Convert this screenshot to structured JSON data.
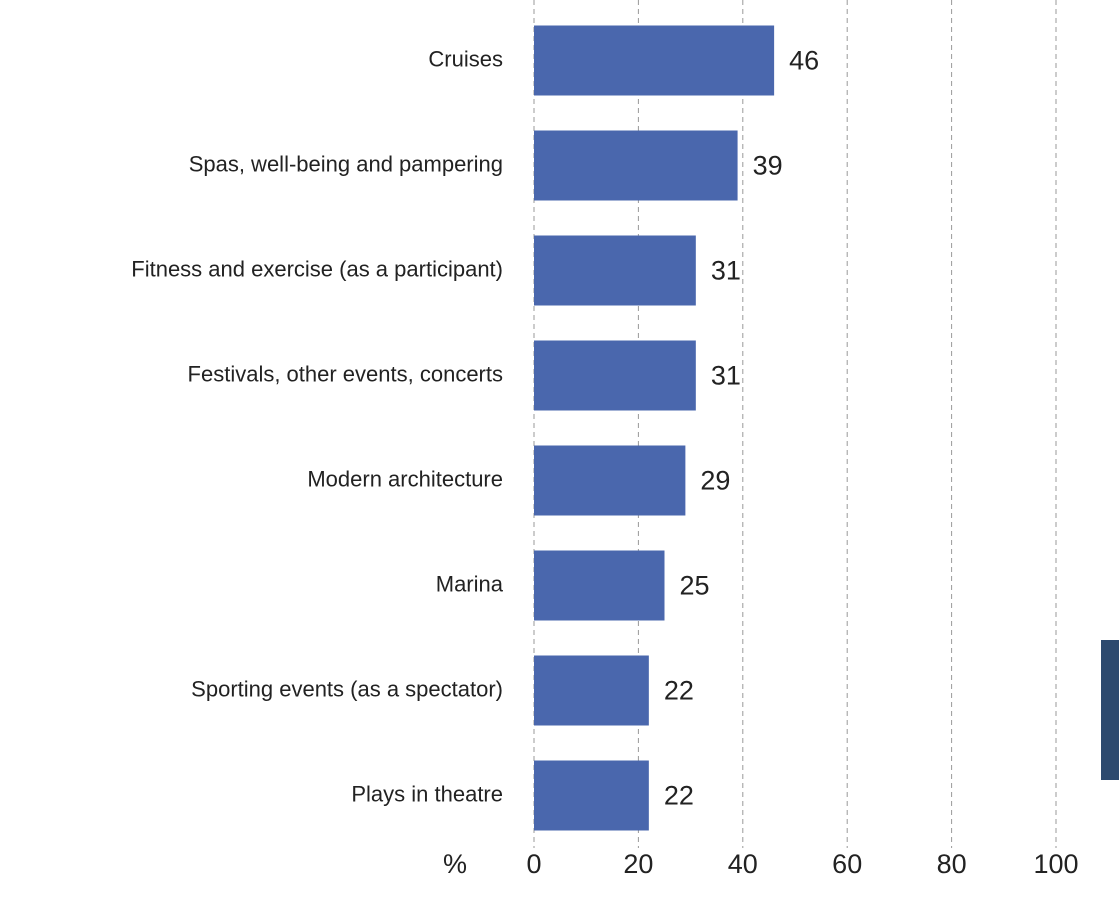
{
  "chart_data": {
    "type": "hbar",
    "categories": [
      "Cruises",
      "Spas, well-being and pampering",
      "Fitness and exercise (as a participant)",
      "Festivals, other events, concerts",
      "Modern architecture",
      "Marina",
      "Sporting events (as a spectator)",
      "Plays in theatre"
    ],
    "values": [
      46,
      39,
      31,
      31,
      29,
      25,
      22,
      22
    ],
    "color": "#4a67ad",
    "xlabel": "%",
    "xlim": [
      0,
      100
    ],
    "xticks": [
      0,
      20,
      40,
      60,
      80,
      100
    ],
    "grid": true
  }
}
